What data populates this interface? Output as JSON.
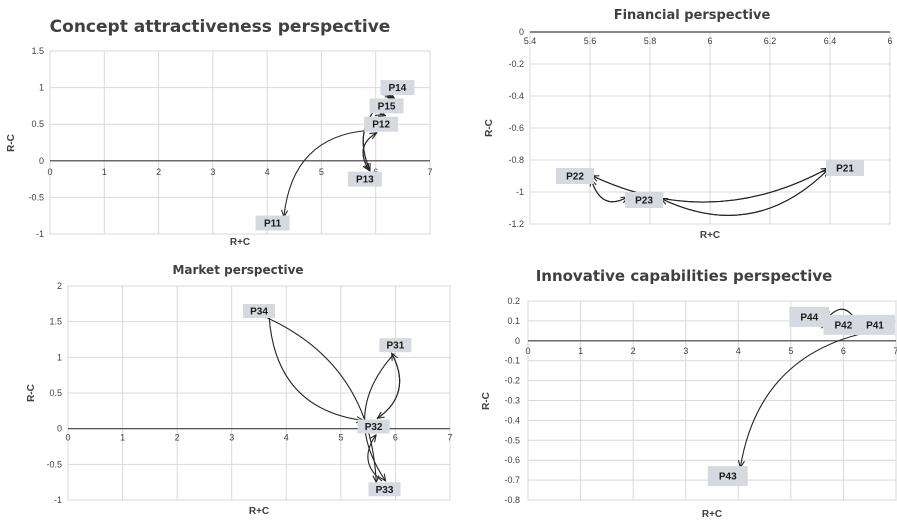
{
  "chart_data": [
    {
      "type": "scatter",
      "title": "Concept attractiveness perspective",
      "xlabel": "R+C",
      "ylabel": "R-C",
      "xlim": [
        0,
        7
      ],
      "ylim": [
        -1,
        1.5
      ],
      "xticks": [
        "0",
        "1",
        "2",
        "3",
        "4",
        "5",
        "6",
        "7"
      ],
      "yticks": [
        "1.5",
        "1",
        "0.5",
        "0",
        "-0.5",
        "-1"
      ],
      "grid": true,
      "points": [
        {
          "label": "P11",
          "x": 4.1,
          "y": -0.85
        },
        {
          "label": "P12",
          "x": 6.1,
          "y": 0.5
        },
        {
          "label": "P13",
          "x": 5.8,
          "y": -0.25
        },
        {
          "label": "P14",
          "x": 6.4,
          "y": 1.0
        },
        {
          "label": "P15",
          "x": 6.2,
          "y": 0.75
        }
      ],
      "arrows": [
        [
          "P15",
          "P12"
        ],
        [
          "P12",
          "P15"
        ],
        [
          "P14",
          "P15"
        ],
        [
          "P15",
          "P14"
        ],
        [
          "P12",
          "P13"
        ],
        [
          "P13",
          "P12"
        ],
        [
          "P14",
          "P13"
        ],
        [
          "P13",
          "P14"
        ],
        [
          "P12",
          "P11"
        ]
      ]
    },
    {
      "type": "scatter",
      "title": "Financial perspective",
      "xlabel": "R+C",
      "ylabel": "R-C",
      "xlim": [
        5.4,
        6.6
      ],
      "ylim": [
        -1.2,
        0
      ],
      "xticks": [
        "5.4",
        "5.6",
        "5.8",
        "6",
        "6.2",
        "6.4",
        "6"
      ],
      "yticks": [
        "0",
        "-0.2",
        "-0.4",
        "-0.6",
        "-0.8",
        "-1",
        "-1.2"
      ],
      "grid": true,
      "points": [
        {
          "label": "P21",
          "x": 6.45,
          "y": -0.85
        },
        {
          "label": "P22",
          "x": 5.55,
          "y": -0.9
        },
        {
          "label": "P23",
          "x": 5.78,
          "y": -1.05
        }
      ],
      "arrows": [
        [
          "P22",
          "P21"
        ],
        [
          "P21",
          "P22"
        ],
        [
          "P23",
          "P21"
        ],
        [
          "P21",
          "P23"
        ],
        [
          "P22",
          "P23"
        ],
        [
          "P23",
          "P22"
        ]
      ]
    },
    {
      "type": "scatter",
      "title": "Market perspective",
      "xlabel": "R+C",
      "ylabel": "R-C",
      "xlim": [
        0,
        7
      ],
      "ylim": [
        -1,
        2
      ],
      "xticks": [
        "0",
        "1",
        "2",
        "3",
        "4",
        "5",
        "6",
        "7"
      ],
      "yticks": [
        "2",
        "1.5",
        "1",
        "0.5",
        "0",
        "-0.5",
        "-1"
      ],
      "grid": true,
      "points": [
        {
          "label": "P31",
          "x": 6.0,
          "y": 1.17
        },
        {
          "label": "P32",
          "x": 5.6,
          "y": 0.03
        },
        {
          "label": "P33",
          "x": 5.8,
          "y": -0.85
        },
        {
          "label": "P34",
          "x": 3.5,
          "y": 1.65
        }
      ],
      "arrows": [
        [
          "P34",
          "P32"
        ],
        [
          "P34",
          "P33"
        ],
        [
          "P32",
          "P31"
        ],
        [
          "P31",
          "P32"
        ],
        [
          "P31",
          "P33"
        ],
        [
          "P33",
          "P32"
        ]
      ]
    },
    {
      "type": "scatter",
      "title": "Innovative capabilities perspective",
      "xlabel": "R+C",
      "ylabel": "R-C",
      "xlim": [
        0,
        7
      ],
      "ylim": [
        -0.8,
        0.2
      ],
      "xticks": [
        "0",
        "1",
        "2",
        "3",
        "4",
        "5",
        "6",
        "7"
      ],
      "yticks": [
        "0.2",
        "0.1",
        "0",
        "-0.1",
        "-0.2",
        "-0.3",
        "-0.4",
        "-0.5",
        "-0.6",
        "-0.7",
        "-0.8"
      ],
      "grid": true,
      "points": [
        {
          "label": "P41",
          "x": 6.6,
          "y": 0.08
        },
        {
          "label": "P42",
          "x": 6.0,
          "y": 0.08
        },
        {
          "label": "P43",
          "x": 3.8,
          "y": -0.68
        },
        {
          "label": "P44",
          "x": 5.35,
          "y": 0.12
        }
      ],
      "arrows": [
        [
          "P44",
          "P42"
        ],
        [
          "P42",
          "P44"
        ],
        [
          "P41",
          "P44"
        ],
        [
          "P44",
          "P41"
        ],
        [
          "P41",
          "P42"
        ],
        [
          "P42",
          "P41"
        ],
        [
          "P41",
          "P43"
        ]
      ]
    }
  ],
  "colors": {
    "grid": "#d9d9d9",
    "box": "#b8b8b8",
    "axis": "#404040",
    "label_bg": "#d6d9df",
    "arrow": "#262626"
  }
}
